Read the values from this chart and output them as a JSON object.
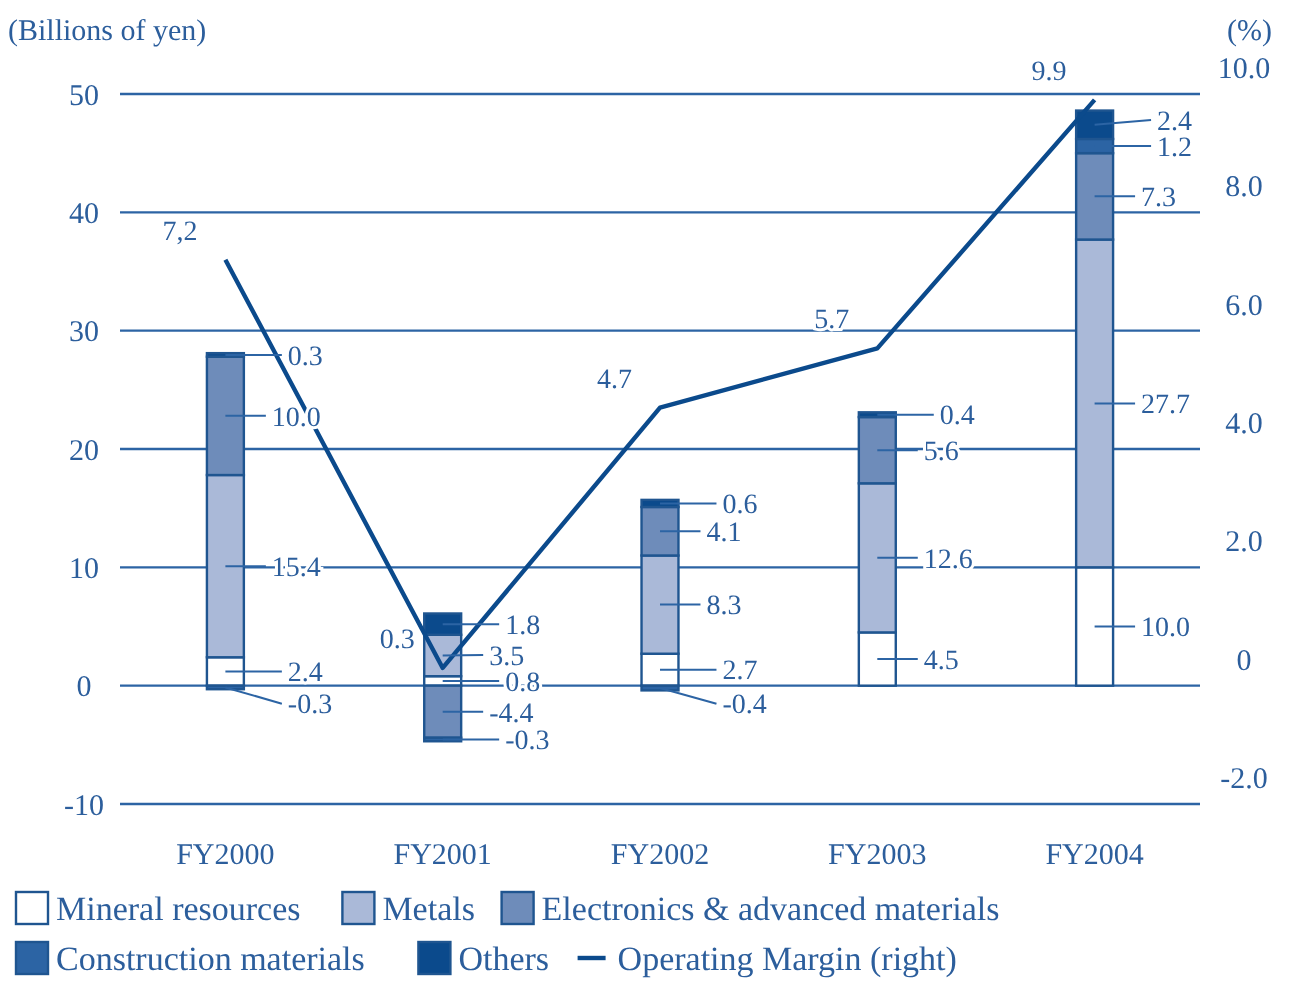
{
  "chart_data": {
    "type": "bar",
    "stacked": true,
    "categories": [
      "FY2000",
      "FY2001",
      "FY2002",
      "FY2003",
      "FY2004"
    ],
    "ylabel": "(Billions of yen)",
    "y2label": "(%)",
    "ylim": [
      -10,
      50
    ],
    "yticks": [
      -10,
      0,
      10,
      20,
      30,
      40,
      50
    ],
    "y2lim": [
      -2,
      10
    ],
    "y2ticks": [
      {
        "value": -2,
        "label": "-2.0"
      },
      0,
      {
        "value": 2,
        "label": "2.0"
      },
      {
        "value": 4,
        "label": "4.0"
      },
      {
        "value": 6,
        "label": "6.0"
      },
      {
        "value": 8,
        "label": "8.0"
      },
      {
        "value": 10,
        "label": "10.0"
      }
    ],
    "grid": "y",
    "legend": "bottom",
    "series": [
      {
        "name": "Mineral resources",
        "color": "#ffffff",
        "values": [
          2.4,
          0.8,
          2.7,
          4.5,
          10.0
        ],
        "value_labels": [
          "2.4",
          "0.8",
          "2.7",
          "4.5",
          "10.0"
        ]
      },
      {
        "name": "Metals",
        "color": "#aab9d8",
        "values": [
          15.4,
          3.5,
          8.3,
          12.6,
          27.7
        ],
        "value_labels": [
          "15.4",
          "3.5",
          "8.3",
          "12.6",
          "27.7"
        ]
      },
      {
        "name": "Electronics & advanced materials",
        "color": "#6e8cba",
        "values": [
          10.0,
          -4.4,
          4.1,
          5.6,
          7.3
        ],
        "value_labels": [
          "10.0",
          "-4.4",
          "4.1",
          "5.6",
          "7.3"
        ]
      },
      {
        "name": "Construction materials",
        "color": "#2c64a4",
        "values": [
          -0.3,
          -0.3,
          -0.4,
          null,
          1.2
        ],
        "value_labels": [
          "-0.3",
          "-0.3",
          "-0.4",
          null,
          "1.2"
        ]
      },
      {
        "name": "Others",
        "color": "#0b4a8c",
        "values": [
          0.3,
          1.8,
          0.6,
          0.4,
          2.4
        ],
        "value_labels": [
          "0.3",
          "1.8",
          "0.6",
          "0.4",
          "2.4"
        ]
      },
      {
        "name": "Operating Margin (right)",
        "type": "line",
        "axis": "y2",
        "color": "#0b4a8c",
        "values": [
          7.2,
          0.3,
          4.7,
          5.7,
          9.9
        ],
        "value_labels": [
          "7,2",
          "0.3",
          "4.7",
          "5.7",
          "9.9"
        ]
      }
    ]
  }
}
